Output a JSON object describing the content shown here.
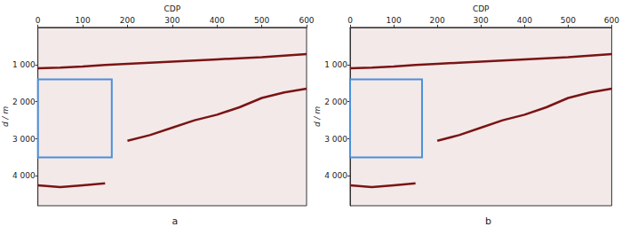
{
  "chart_data": [
    {
      "type": "line",
      "title": "a",
      "x_label": "CDP",
      "y_label": "d / m",
      "xlim": [
        0,
        600
      ],
      "xticks": [
        0,
        100,
        200,
        300,
        400,
        500,
        600
      ],
      "ylim": [
        0,
        4800
      ],
      "yticks": [
        {
          "value": 1000,
          "label": "1 000"
        },
        {
          "value": 2000,
          "label": "2 000"
        },
        {
          "value": 3000,
          "label": "3 000"
        },
        {
          "value": 4000,
          "label": "4 000"
        }
      ],
      "x": [
        0,
        50,
        100,
        150,
        200,
        250,
        300,
        350,
        400,
        450,
        500,
        550,
        600
      ],
      "series": [
        {
          "color": "#7a1414",
          "values": [
            1100,
            1080,
            1050,
            1010,
            980,
            950,
            920,
            890,
            860,
            830,
            800,
            760,
            720
          ]
        },
        {
          "color": "#7a1414",
          "values": [
            null,
            null,
            null,
            null,
            3050,
            2900,
            2700,
            2500,
            2350,
            2150,
            1900,
            1750,
            1650
          ]
        },
        {
          "color": "#7a1414",
          "values": [
            4250,
            4300,
            4250,
            4200,
            null,
            null,
            null,
            null,
            null,
            null,
            null,
            null,
            null
          ]
        }
      ],
      "highlight_box": {
        "x": [
          0,
          165
        ],
        "y": [
          1400,
          3500
        ],
        "color": "#4a90d9"
      },
      "grid": false
    },
    {
      "type": "line",
      "title": "b",
      "x_label": "CDP",
      "y_label": "d / m",
      "xlim": [
        0,
        600
      ],
      "xticks": [
        0,
        100,
        200,
        300,
        400,
        500,
        600
      ],
      "ylim": [
        0,
        4800
      ],
      "yticks": [
        {
          "value": 1000,
          "label": "1 000"
        },
        {
          "value": 2000,
          "label": "2 000"
        },
        {
          "value": 3000,
          "label": "3 000"
        },
        {
          "value": 4000,
          "label": "4 000"
        }
      ],
      "x": [
        0,
        50,
        100,
        150,
        200,
        250,
        300,
        350,
        400,
        450,
        500,
        550,
        600
      ],
      "series": [
        {
          "color": "#7a1414",
          "values": [
            1100,
            1080,
            1050,
            1010,
            980,
            950,
            920,
            890,
            860,
            830,
            800,
            760,
            720
          ]
        },
        {
          "color": "#7a1414",
          "values": [
            null,
            null,
            null,
            null,
            3050,
            2900,
            2700,
            2500,
            2350,
            2150,
            1900,
            1750,
            1650
          ]
        },
        {
          "color": "#7a1414",
          "values": [
            4250,
            4300,
            4250,
            4200,
            null,
            null,
            null,
            null,
            null,
            null,
            null,
            null,
            null
          ]
        }
      ],
      "highlight_box": {
        "x": [
          0,
          165
        ],
        "y": [
          1400,
          3500
        ],
        "color": "#4a90d9"
      },
      "grid": false
    }
  ]
}
